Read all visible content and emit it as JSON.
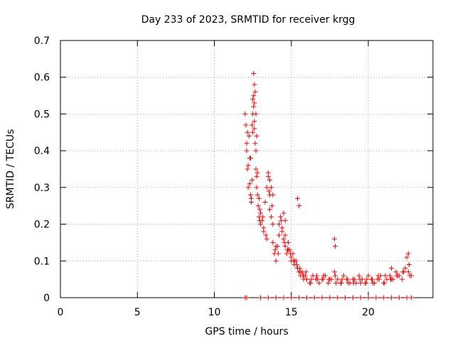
{
  "chart_data": {
    "type": "scatter",
    "title": "Day 233 of 2023, SRMTID for receiver krgg",
    "xlabel": "GPS time / hours",
    "ylabel": "SRMTID / TECUs",
    "xlim": [
      0,
      24.2
    ],
    "ylim": [
      0,
      0.7
    ],
    "xticks": [
      0,
      5,
      10,
      15,
      20
    ],
    "yticks": [
      0,
      0.1,
      0.2,
      0.3,
      0.4,
      0.5,
      0.6,
      0.7
    ],
    "ytick_labels": [
      "0",
      "0.1",
      "0.2",
      "0.3",
      "0.4",
      "0.5",
      "0.6",
      "0.7"
    ],
    "xtick_labels": [
      "0",
      "5",
      "10",
      "15",
      "20"
    ],
    "grid": true,
    "marker": "+",
    "color": "#ff0000",
    "series": [
      {
        "name": "krgg",
        "x": [
          12.0,
          12.05,
          12.1,
          12.15,
          12.2,
          12.25,
          12.3,
          12.35,
          12.4,
          12.45,
          12.5,
          12.55,
          12.6,
          12.65,
          12.7,
          12.75,
          12.8,
          12.85,
          12.9,
          12.95,
          13.0,
          13.1,
          13.2,
          13.3,
          13.4,
          13.5,
          13.6,
          13.7,
          13.8,
          13.9,
          14.0,
          14.1,
          14.2,
          14.3,
          14.4,
          14.5,
          14.6,
          14.7,
          14.8,
          14.9,
          15.0,
          15.1,
          15.2,
          15.3,
          15.4,
          15.5,
          15.6,
          15.7,
          15.8,
          15.9,
          16.0,
          16.2,
          16.4,
          16.6,
          16.8,
          17.0,
          17.2,
          17.4,
          17.6,
          17.8,
          18.0,
          18.2,
          18.4,
          18.6,
          18.8,
          19.0,
          19.2,
          19.4,
          19.6,
          19.8,
          20.0,
          20.2,
          20.4,
          20.6,
          20.8,
          21.0,
          21.2,
          21.4,
          21.6,
          21.8,
          22.0,
          22.2,
          22.4,
          22.6,
          22.8,
          12.1,
          12.2,
          12.3,
          12.4,
          12.5,
          12.6,
          12.7,
          12.8,
          12.9,
          13.0,
          13.2,
          13.4,
          13.6,
          13.8,
          14.0,
          14.2,
          14.4,
          14.6,
          14.8,
          15.0,
          15.2,
          15.4,
          15.6,
          15.8,
          16.0,
          16.3,
          16.7,
          17.1,
          17.5,
          17.9,
          18.3,
          18.7,
          19.1,
          19.5,
          19.9,
          20.3,
          20.7,
          21.1,
          21.5,
          21.9,
          22.3,
          22.7,
          12.15,
          12.35,
          12.55,
          12.75,
          12.95,
          13.15,
          13.35,
          13.55,
          13.75,
          13.95,
          14.15,
          14.35,
          14.55,
          14.75,
          14.95,
          15.15,
          15.35,
          15.55,
          15.75,
          15.95,
          16.25,
          16.65,
          17.05,
          17.45,
          17.85,
          18.25,
          18.65,
          19.05,
          19.45,
          19.85,
          20.25,
          20.65,
          21.05,
          21.45,
          21.85,
          22.25,
          22.65,
          12.55,
          12.6,
          12.65,
          12.5,
          12.7,
          12.45,
          12.75,
          12.6,
          13.5,
          13.6,
          13.7,
          13.8,
          14.5,
          14.6,
          15.4,
          15.5,
          17.8,
          17.85,
          21.5,
          22.5,
          22.6,
          12.0,
          12.1,
          13.0,
          13.5,
          14.0,
          14.5,
          15.0,
          15.5,
          16.0,
          16.5,
          17.0,
          17.5,
          18.0,
          18.5,
          19.0,
          19.5,
          20.0,
          20.5,
          21.0,
          21.5,
          22.0,
          22.5,
          22.8
        ],
        "y": [
          0.5,
          0.47,
          0.4,
          0.35,
          0.3,
          0.44,
          0.38,
          0.28,
          0.26,
          0.32,
          0.45,
          0.55,
          0.48,
          0.42,
          0.35,
          0.3,
          0.28,
          0.25,
          0.22,
          0.24,
          0.2,
          0.21,
          0.18,
          0.26,
          0.3,
          0.33,
          0.28,
          0.22,
          0.15,
          0.12,
          0.1,
          0.14,
          0.2,
          0.22,
          0.18,
          0.16,
          0.14,
          0.12,
          0.15,
          0.13,
          0.1,
          0.12,
          0.09,
          0.1,
          0.08,
          0.07,
          0.06,
          0.07,
          0.05,
          0.06,
          0.05,
          0.04,
          0.06,
          0.05,
          0.04,
          0.05,
          0.06,
          0.04,
          0.05,
          0.07,
          0.05,
          0.04,
          0.06,
          0.05,
          0.04,
          0.05,
          0.04,
          0.06,
          0.05,
          0.04,
          0.06,
          0.05,
          0.04,
          0.05,
          0.06,
          0.04,
          0.05,
          0.06,
          0.05,
          0.07,
          0.06,
          0.05,
          0.08,
          0.07,
          0.06,
          0.42,
          0.36,
          0.31,
          0.27,
          0.5,
          0.46,
          0.4,
          0.34,
          0.27,
          0.23,
          0.19,
          0.16,
          0.24,
          0.2,
          0.14,
          0.17,
          0.19,
          0.17,
          0.13,
          0.11,
          0.1,
          0.08,
          0.07,
          0.06,
          0.05,
          0.05,
          0.05,
          0.06,
          0.05,
          0.04,
          0.05,
          0.04,
          0.05,
          0.04,
          0.05,
          0.04,
          0.05,
          0.06,
          0.05,
          0.06,
          0.07,
          0.06,
          0.45,
          0.38,
          0.52,
          0.33,
          0.21,
          0.22,
          0.17,
          0.29,
          0.25,
          0.13,
          0.12,
          0.21,
          0.15,
          0.13,
          0.12,
          0.1,
          0.09,
          0.08,
          0.06,
          0.07,
          0.04,
          0.06,
          0.05,
          0.05,
          0.06,
          0.04,
          0.05,
          0.04,
          0.05,
          0.04,
          0.05,
          0.06,
          0.04,
          0.05,
          0.06,
          0.07,
          0.09,
          0.61,
          0.58,
          0.56,
          0.54,
          0.5,
          0.47,
          0.44,
          0.53,
          0.34,
          0.32,
          0.3,
          0.28,
          0.23,
          0.21,
          0.27,
          0.25,
          0.16,
          0.14,
          0.08,
          0.11,
          0.12,
          0.0,
          0.0,
          0.0,
          0.0,
          0.0,
          0.0,
          0.0,
          0.0,
          0.0,
          0.0,
          0.0,
          0.0,
          0.0,
          0.0,
          0.0,
          0.0,
          0.0,
          0.0,
          0.0,
          0.0,
          0.0,
          0.0,
          0.0
        ]
      }
    ]
  }
}
